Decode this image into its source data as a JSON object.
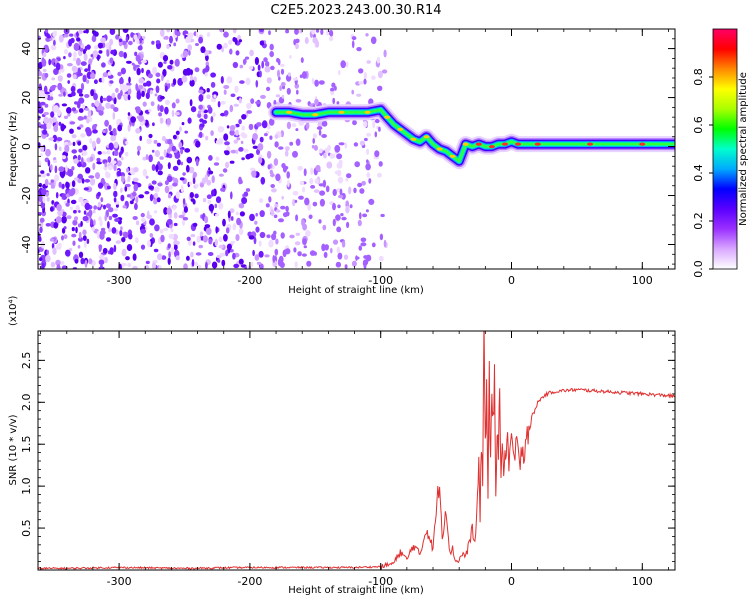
{
  "title": "C2E5.2023.243.00.30.R14",
  "chart_data": [
    {
      "type": "heatmap",
      "xlabel": "Height of straight line (km)",
      "ylabel": "Frequency (Hz)",
      "xlim": [
        -362,
        125
      ],
      "ylim": [
        -50,
        48
      ],
      "xticks": [
        -300,
        -200,
        -100,
        0,
        100
      ],
      "yticks": [
        -40,
        -20,
        0,
        20,
        40
      ],
      "xtick_labels": [
        "-300",
        "-200",
        "-100",
        "0",
        "100"
      ],
      "ytick_labels": [
        "-40",
        "-20",
        "0",
        "20",
        "40"
      ],
      "colorbar": {
        "label": "Normalized spectral amplitude",
        "range": [
          0,
          1
        ],
        "ticks": [
          0.0,
          0.2,
          0.4,
          0.6,
          0.8
        ],
        "tick_labels": [
          "0.0",
          "0.2",
          "0.4",
          "0.6",
          "0.8"
        ],
        "colors": [
          "#ffffff",
          "#d9a8ff",
          "#9b30ff",
          "#5a00ff",
          "#0000ff",
          "#00aaff",
          "#00ffcc",
          "#00ff00",
          "#aaff00",
          "#ffff00",
          "#ff8800",
          "#ff0000",
          "#ff0066"
        ]
      },
      "ridge": {
        "x": [
          -180,
          -170,
          -160,
          -150,
          -140,
          -130,
          -120,
          -110,
          -100,
          -95,
          -90,
          -85,
          -80,
          -75,
          -70,
          -65,
          -60,
          -55,
          -50,
          -45,
          -40,
          -35,
          -30,
          -25,
          -20,
          -15,
          -10,
          -5,
          0,
          5,
          10,
          20,
          40,
          60,
          80,
          100,
          125
        ],
        "y": [
          14,
          14,
          13,
          13,
          14,
          14,
          14,
          14,
          15,
          12,
          9,
          7,
          5,
          3,
          2,
          4,
          1,
          -1,
          -2,
          -4,
          -6,
          1,
          0,
          1,
          0,
          0,
          1,
          1,
          2,
          1,
          1,
          1,
          1,
          1,
          1,
          1,
          1
        ]
      }
    },
    {
      "type": "line",
      "xlabel": "Height of straight line (km)",
      "ylabel": "SNR (10 * v/v)",
      "y_multiplier_label": "(x10⁴)",
      "xlim": [
        -362,
        125
      ],
      "ylim": [
        0,
        2.85
      ],
      "xticks": [
        -300,
        -200,
        -100,
        0,
        100
      ],
      "yticks": [
        0.5,
        1.0,
        1.5,
        2.0,
        2.5
      ],
      "xtick_labels": [
        "-300",
        "-200",
        "-100",
        "0",
        "100"
      ],
      "ytick_labels": [
        "0.5",
        "1.0",
        "1.5",
        "2.0",
        "2.5"
      ],
      "series": [
        {
          "color": "#e03030",
          "x": [
            -362,
            -340,
            -300,
            -250,
            -200,
            -150,
            -120,
            -100,
            -90,
            -85,
            -80,
            -75,
            -70,
            -65,
            -60,
            -57,
            -55,
            -53,
            -50,
            -47,
            -45,
            -43,
            -40,
            -37,
            -35,
            -32,
            -30,
            -28,
            -26,
            -25,
            -24,
            -23,
            -22,
            -21,
            -20,
            -19,
            -18,
            -17,
            -16,
            -15,
            -14,
            -13,
            -12,
            -11,
            -10,
            -9,
            -8,
            -7,
            -6,
            -5,
            -4,
            -3,
            -2,
            0,
            2,
            4,
            6,
            8,
            10,
            12,
            14,
            16,
            18,
            20,
            25,
            30,
            40,
            50,
            60,
            70,
            80,
            90,
            100,
            110,
            120,
            125
          ],
          "y": [
            0.02,
            0.02,
            0.03,
            0.02,
            0.03,
            0.03,
            0.03,
            0.04,
            0.08,
            0.22,
            0.12,
            0.3,
            0.18,
            0.5,
            0.25,
            0.8,
            1.08,
            0.4,
            0.75,
            0.18,
            0.28,
            0.1,
            0.12,
            0.2,
            0.15,
            0.35,
            0.5,
            0.3,
            0.8,
            1.3,
            0.6,
            1.6,
            1.1,
            2.85,
            1.5,
            2.2,
            0.9,
            2.3,
            1.2,
            2.0,
            1.7,
            2.3,
            1.0,
            1.8,
            1.4,
            2.05,
            1.2,
            1.5,
            1.0,
            1.6,
            1.3,
            1.7,
            1.1,
            1.6,
            1.3,
            1.5,
            1.2,
            1.55,
            1.4,
            1.7,
            1.75,
            1.85,
            1.9,
            2.0,
            2.08,
            2.12,
            2.14,
            2.15,
            2.14,
            2.13,
            2.12,
            2.11,
            2.1,
            2.09,
            2.08,
            2.07
          ]
        }
      ]
    }
  ]
}
